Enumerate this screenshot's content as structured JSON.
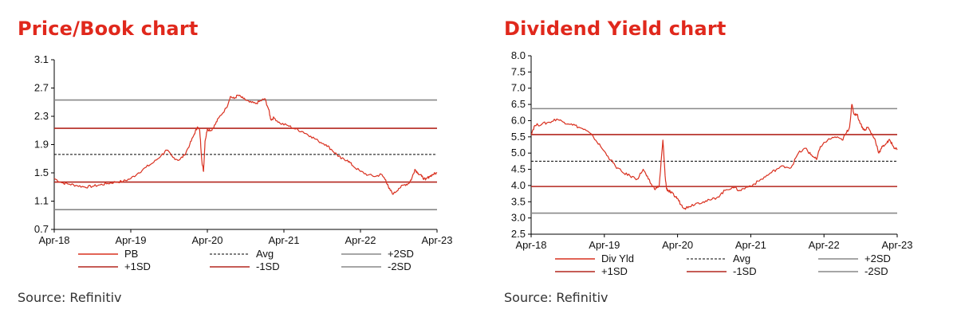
{
  "colors": {
    "title": "#e0281c",
    "series": "#d9301f",
    "sd1": "#b3261e",
    "sd2": "#888888",
    "avg": "#000000"
  },
  "charts": [
    {
      "title": "Price/Book chart",
      "source": "Source: Refinitiv"
    },
    {
      "title": "Dividend Yield chart",
      "source": "Source: Refinitiv"
    }
  ],
  "chart_data": [
    {
      "type": "line",
      "title": "Price/Book chart",
      "x_ticks": [
        "Apr-18",
        "Apr-19",
        "Apr-20",
        "Apr-21",
        "Apr-22",
        "Apr-23"
      ],
      "y_ticks": [
        "3.1",
        "2.7",
        "2.3",
        "1.9",
        "1.5",
        "1.1",
        "0.7"
      ],
      "ylim": [
        0.7,
        3.1
      ],
      "x_range": [
        "Apr-18",
        "Apr-23"
      ],
      "grid": false,
      "legend_position": "bottom",
      "legend": [
        {
          "label": "PB",
          "style": "series"
        },
        {
          "label": "Avg",
          "style": "avg"
        },
        {
          "label": "+2SD",
          "style": "sd2"
        },
        {
          "label": "+1SD",
          "style": "sd1"
        },
        {
          "label": "-1SD",
          "style": "sd1"
        },
        {
          "label": "-2SD",
          "style": "sd2"
        }
      ],
      "reference_lines": {
        "avg": 1.76,
        "plus1sd": 2.13,
        "minus1sd": 1.37,
        "plus2sd": 2.53,
        "minus2sd": 0.98
      },
      "series": [
        {
          "name": "PB",
          "x": [
            2018.25,
            2018.35,
            2018.45,
            2018.55,
            2018.65,
            2018.75,
            2018.85,
            2018.95,
            2019.05,
            2019.15,
            2019.25,
            2019.35,
            2019.45,
            2019.55,
            2019.65,
            2019.72,
            2019.8,
            2019.88,
            2019.95,
            2020.02,
            2020.08,
            2020.12,
            2020.15,
            2020.18,
            2020.2,
            2020.22,
            2020.25,
            2020.3,
            2020.35,
            2020.4,
            2020.5,
            2020.55,
            2020.6,
            2020.65,
            2020.72,
            2020.8,
            2020.88,
            2020.95,
            2021.0,
            2021.05,
            2021.08,
            2021.12,
            2021.2,
            2021.3,
            2021.4,
            2021.5,
            2021.6,
            2021.7,
            2021.8,
            2021.88,
            2021.95,
            2022.0,
            2022.08,
            2022.15,
            2022.25,
            2022.35,
            2022.45,
            2022.52,
            2022.58,
            2022.62,
            2022.68,
            2022.75,
            2022.82,
            2022.88,
            2022.92,
            2022.96,
            2023.0,
            2023.05,
            2023.1,
            2023.15,
            2023.2,
            2023.25
          ],
          "y": [
            1.42,
            1.36,
            1.34,
            1.32,
            1.3,
            1.31,
            1.33,
            1.35,
            1.37,
            1.38,
            1.42,
            1.5,
            1.58,
            1.65,
            1.75,
            1.82,
            1.72,
            1.68,
            1.75,
            1.9,
            2.05,
            2.15,
            2.1,
            1.65,
            1.52,
            1.95,
            2.12,
            2.1,
            2.18,
            2.28,
            2.42,
            2.58,
            2.55,
            2.6,
            2.55,
            2.5,
            2.48,
            2.52,
            2.55,
            2.4,
            2.25,
            2.28,
            2.2,
            2.17,
            2.12,
            2.08,
            2.02,
            1.95,
            1.9,
            1.82,
            1.75,
            1.7,
            1.68,
            1.6,
            1.52,
            1.47,
            1.45,
            1.48,
            1.4,
            1.28,
            1.2,
            1.28,
            1.33,
            1.35,
            1.42,
            1.55,
            1.5,
            1.45,
            1.4,
            1.45,
            1.48,
            1.5
          ]
        }
      ]
    },
    {
      "type": "line",
      "title": "Dividend Yield chart",
      "x_ticks": [
        "Apr-18",
        "Apr-19",
        "Apr-20",
        "Apr-21",
        "Apr-22",
        "Apr-23"
      ],
      "y_ticks": [
        "8.0",
        "7.5",
        "7.0",
        "6.5",
        "6.0",
        "5.5",
        "5.0",
        "4.5",
        "4.0",
        "3.5",
        "3.0",
        "2.5"
      ],
      "ylim": [
        2.5,
        8.0
      ],
      "x_range": [
        "Apr-18",
        "Apr-23"
      ],
      "grid": false,
      "legend_position": "bottom",
      "legend": [
        {
          "label": "Div Yld",
          "style": "series"
        },
        {
          "label": "Avg",
          "style": "avg"
        },
        {
          "label": "+2SD",
          "style": "sd2"
        },
        {
          "label": "+1SD",
          "style": "sd1"
        },
        {
          "label": "-1SD",
          "style": "sd1"
        },
        {
          "label": "-2SD",
          "style": "sd2"
        }
      ],
      "reference_lines": {
        "avg": 4.75,
        "plus1sd": 5.57,
        "minus1sd": 3.97,
        "plus2sd": 6.37,
        "minus2sd": 3.15
      },
      "series": [
        {
          "name": "Div Yld",
          "x": [
            2018.25,
            2018.3,
            2018.4,
            2018.5,
            2018.6,
            2018.7,
            2018.8,
            2018.9,
            2019.0,
            2019.1,
            2019.2,
            2019.3,
            2019.4,
            2019.5,
            2019.6,
            2019.7,
            2019.78,
            2019.85,
            2019.9,
            2019.95,
            2020.0,
            2020.05,
            2020.08,
            2020.1,
            2020.12,
            2020.15,
            2020.2,
            2020.25,
            2020.3,
            2020.35,
            2020.4,
            2020.5,
            2020.6,
            2020.7,
            2020.8,
            2020.9,
            2021.0,
            2021.1,
            2021.2,
            2021.3,
            2021.4,
            2021.5,
            2021.6,
            2021.7,
            2021.8,
            2021.9,
            2022.0,
            2022.05,
            2022.1,
            2022.15,
            2022.2,
            2022.3,
            2022.4,
            2022.5,
            2022.55,
            2022.6,
            2022.63,
            2022.66,
            2022.7,
            2022.75,
            2022.8,
            2022.85,
            2022.9,
            2022.95,
            2023.0,
            2023.05,
            2023.1,
            2023.15,
            2023.2,
            2023.25
          ],
          "y": [
            5.6,
            5.85,
            5.9,
            5.95,
            6.05,
            5.95,
            5.9,
            5.8,
            5.7,
            5.5,
            5.2,
            4.9,
            4.6,
            4.4,
            4.3,
            4.2,
            4.5,
            4.2,
            4.0,
            3.9,
            4.0,
            5.4,
            4.3,
            3.9,
            3.85,
            3.8,
            3.7,
            3.6,
            3.4,
            3.3,
            3.35,
            3.45,
            3.5,
            3.55,
            3.65,
            3.85,
            3.95,
            3.85,
            3.95,
            4.05,
            4.2,
            4.35,
            4.5,
            4.6,
            4.55,
            5.0,
            5.15,
            5.0,
            4.9,
            4.8,
            5.2,
            5.4,
            5.5,
            5.4,
            5.6,
            5.8,
            6.5,
            6.2,
            6.2,
            5.9,
            5.7,
            5.8,
            5.6,
            5.4,
            5.0,
            5.2,
            5.3,
            5.4,
            5.2,
            5.1
          ]
        }
      ]
    }
  ]
}
